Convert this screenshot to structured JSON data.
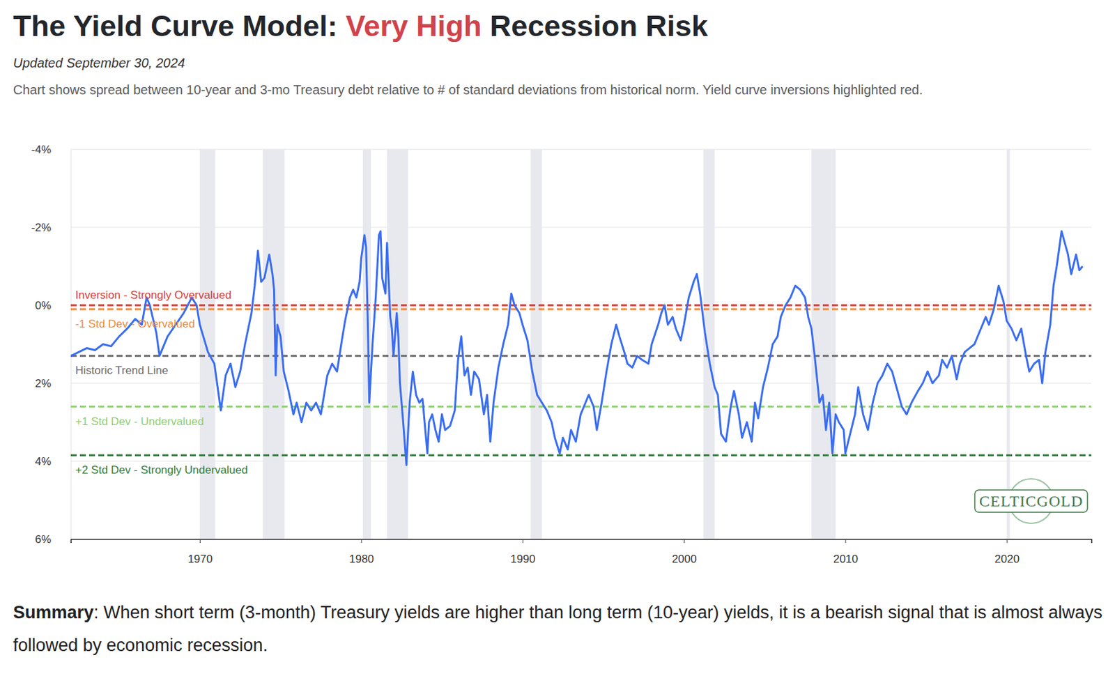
{
  "chart_data": {
    "type": "line",
    "title": {
      "prefix": "The Yield Curve Model:",
      "highlight": "Very High",
      "suffix": "Recession Risk"
    },
    "subtitle": "Updated September 30, 2024",
    "description": "Chart shows spread between 10-year and 3-mo Treasury debt relative to # of standard deviations from historical norm. Yield curve inversions highlighted red.",
    "x": [
      1962.0,
      1962.5,
      1963.0,
      1963.5,
      1964.0,
      1964.5,
      1965.0,
      1965.5,
      1966.0,
      1966.4,
      1966.7,
      1966.9,
      1967.3,
      1967.5,
      1968.0,
      1968.5,
      1969.0,
      1969.5,
      1969.8,
      1970.0,
      1970.5,
      1970.9,
      1971.1,
      1971.3,
      1971.6,
      1971.9,
      1972.2,
      1972.5,
      1972.8,
      1973.2,
      1973.4,
      1973.6,
      1973.8,
      1974.0,
      1974.3,
      1974.5,
      1974.6,
      1974.7,
      1974.8,
      1975.0,
      1975.2,
      1975.5,
      1975.8,
      1976.0,
      1976.3,
      1976.6,
      1976.9,
      1977.2,
      1977.5,
      1977.7,
      1977.9,
      1978.2,
      1978.5,
      1978.8,
      1979.0,
      1979.3,
      1979.5,
      1979.7,
      1979.9,
      1980.0,
      1980.2,
      1980.3,
      1980.4,
      1980.5,
      1980.7,
      1980.9,
      1981.1,
      1981.2,
      1981.3,
      1981.5,
      1981.6,
      1981.8,
      1981.9,
      1982.0,
      1982.2,
      1982.3,
      1982.4,
      1982.6,
      1982.8,
      1983.0,
      1983.2,
      1983.4,
      1983.6,
      1983.8,
      1984.1,
      1984.2,
      1984.4,
      1984.6,
      1984.8,
      1985.0,
      1985.2,
      1985.5,
      1985.8,
      1986.0,
      1986.2,
      1986.4,
      1986.6,
      1986.8,
      1987.0,
      1987.3,
      1987.6,
      1987.8,
      1988.0,
      1988.2,
      1988.5,
      1988.8,
      1989.1,
      1989.3,
      1989.5,
      1989.8,
      1990.0,
      1990.3,
      1990.6,
      1990.9,
      1991.2,
      1991.5,
      1991.8,
      1992.0,
      1992.3,
      1992.5,
      1992.8,
      1993.0,
      1993.3,
      1993.6,
      1993.9,
      1994.1,
      1994.4,
      1994.6,
      1994.9,
      1995.2,
      1995.5,
      1995.8,
      1996.0,
      1996.3,
      1996.5,
      1996.8,
      1997.1,
      1997.4,
      1997.8,
      1998.0,
      1998.4,
      1998.6,
      1998.8,
      1999.0,
      1999.3,
      1999.5,
      1999.8,
      2000.0,
      2000.3,
      2000.6,
      2000.8,
      2001.0,
      2001.3,
      2001.6,
      2001.9,
      2002.1,
      2002.3,
      2002.6,
      2002.9,
      2003.1,
      2003.4,
      2003.6,
      2003.9,
      2004.2,
      2004.4,
      2004.6,
      2004.9,
      2005.2,
      2005.5,
      2005.8,
      2006.0,
      2006.3,
      2006.6,
      2006.9,
      2007.2,
      2007.5,
      2007.7,
      2007.9,
      2008.1,
      2008.3,
      2008.4,
      2008.6,
      2008.8,
      2009.0,
      2009.2,
      2009.4,
      2009.6,
      2009.9,
      2010.0,
      2010.3,
      2010.6,
      2010.8,
      2011.1,
      2011.4,
      2011.7,
      2012.0,
      2012.3,
      2012.6,
      2012.9,
      2013.1,
      2013.5,
      2013.8,
      2014.1,
      2014.5,
      2014.8,
      2015.1,
      2015.4,
      2015.8,
      2016.0,
      2016.3,
      2016.6,
      2016.9,
      2017.1,
      2017.4,
      2017.7,
      2018.0,
      2018.4,
      2018.7,
      2018.9,
      2019.2,
      2019.5,
      2019.8,
      2020.0,
      2020.3,
      2020.6,
      2020.9,
      2021.2,
      2021.4,
      2021.7,
      2022.0,
      2022.2,
      2022.4,
      2022.7,
      2022.9,
      2023.1,
      2023.4,
      2023.6,
      2023.8,
      2024.0,
      2024.3,
      2024.5,
      2024.7
    ],
    "series": [
      {
        "color": "#3a6df0",
        "values": [
          1.3,
          1.2,
          1.1,
          1.15,
          1.0,
          1.05,
          0.8,
          0.6,
          0.35,
          0.5,
          -0.2,
          0.0,
          0.7,
          1.3,
          0.8,
          0.5,
          0.2,
          -0.2,
          0.0,
          0.5,
          1.2,
          1.5,
          2.1,
          2.7,
          1.8,
          1.5,
          2.1,
          1.7,
          1.0,
          0.2,
          -0.5,
          -1.4,
          -0.6,
          -0.7,
          -1.3,
          -0.8,
          -0.4,
          1.8,
          0.5,
          0.8,
          1.7,
          2.2,
          2.8,
          2.5,
          3.0,
          2.5,
          2.7,
          2.5,
          2.8,
          2.3,
          1.8,
          1.5,
          1.7,
          0.9,
          0.4,
          -0.2,
          -0.4,
          -0.2,
          -0.6,
          -1.2,
          -1.8,
          -1.5,
          0.3,
          2.5,
          1.0,
          -0.2,
          -1.8,
          -1.9,
          -0.7,
          -0.3,
          -1.6,
          0.3,
          0.6,
          1.3,
          0.2,
          0.8,
          2.0,
          3.0,
          4.1,
          2.5,
          1.7,
          2.3,
          2.5,
          2.4,
          3.8,
          3.0,
          2.8,
          3.2,
          3.5,
          2.8,
          3.2,
          3.1,
          2.7,
          1.4,
          0.8,
          1.8,
          1.6,
          2.3,
          1.7,
          1.9,
          2.8,
          2.3,
          3.5,
          2.5,
          1.6,
          1.0,
          0.5,
          -0.3,
          0.0,
          0.2,
          0.5,
          0.9,
          1.7,
          2.3,
          2.5,
          2.7,
          3.0,
          3.4,
          3.8,
          3.4,
          3.7,
          3.2,
          3.5,
          2.8,
          2.5,
          2.3,
          2.6,
          3.2,
          2.5,
          1.7,
          1.0,
          0.5,
          0.8,
          1.2,
          1.5,
          1.6,
          1.3,
          1.4,
          1.5,
          1.0,
          0.5,
          0.2,
          0.0,
          0.5,
          0.3,
          0.6,
          0.9,
          0.5,
          -0.2,
          -0.6,
          -0.8,
          -0.3,
          0.7,
          1.5,
          2.1,
          2.3,
          3.3,
          3.5,
          2.6,
          2.2,
          2.8,
          3.4,
          3.0,
          3.5,
          2.5,
          2.9,
          2.1,
          1.6,
          1.0,
          0.8,
          0.3,
          0.0,
          -0.2,
          -0.5,
          -0.4,
          -0.2,
          0.3,
          0.6,
          1.3,
          2.1,
          2.5,
          2.3,
          3.2,
          2.5,
          3.8,
          2.8,
          3.0,
          3.2,
          3.8,
          3.3,
          2.8,
          2.1,
          2.8,
          3.2,
          2.5,
          2.0,
          1.8,
          1.5,
          1.7,
          2.0,
          2.6,
          2.8,
          2.5,
          2.2,
          2.0,
          1.7,
          2.0,
          1.8,
          1.4,
          1.6,
          1.3,
          1.9,
          1.5,
          1.2,
          1.1,
          1.0,
          0.6,
          0.3,
          0.5,
          0.1,
          -0.5,
          -0.1,
          0.4,
          0.6,
          0.9,
          0.6,
          1.3,
          1.7,
          1.5,
          1.4,
          2.0,
          1.2,
          0.5,
          -0.5,
          -1.0,
          -1.9,
          -1.6,
          -1.3,
          -0.8,
          -1.3,
          -0.9,
          -1.0
        ]
      }
    ],
    "xlim": [
      1962,
      2025.25
    ],
    "xticks": [
      1970,
      1980,
      1990,
      2000,
      2010,
      2020
    ],
    "ylim": [
      -4,
      6
    ],
    "yticks": [
      {
        "value": -4,
        "label": "-4%"
      },
      {
        "value": -2,
        "label": "-2%"
      },
      {
        "value": 0,
        "label": "0%"
      },
      {
        "value": 2,
        "label": "2%"
      },
      {
        "value": 4,
        "label": "4%"
      },
      {
        "value": 6,
        "label": "6%"
      }
    ],
    "grid": true,
    "reference_lines": [
      {
        "value": 0,
        "label": "Inversion - Strongly Overvalued",
        "color": "#d4403b",
        "line_style": "dashed"
      },
      {
        "value": 0.1,
        "label": "-1 Std Dev - Overvalued",
        "color": "#ee8a3c",
        "line_style": "dashed"
      },
      {
        "value": 1.3,
        "label": "Historic Trend Line",
        "color": "#6a6a6a",
        "line_style": "dashed"
      },
      {
        "value": 2.6,
        "label": "+1 Std Dev - Undervalued",
        "color": "#8fcf72",
        "line_style": "dashed"
      },
      {
        "value": 3.85,
        "label": "+2 Std Dev - Strongly Undervalued",
        "color": "#2f7d3b",
        "line_style": "dashed"
      }
    ],
    "recessions": [
      {
        "start": 1970.0,
        "end": 1970.95
      },
      {
        "start": 1973.9,
        "end": 1975.25
      },
      {
        "start": 1980.1,
        "end": 1980.6
      },
      {
        "start": 1981.6,
        "end": 1982.9
      },
      {
        "start": 1990.5,
        "end": 1991.2
      },
      {
        "start": 2001.2,
        "end": 2001.9
      },
      {
        "start": 2007.9,
        "end": 2009.4
      },
      {
        "start": 2020.0,
        "end": 2020.2
      }
    ],
    "watermark": "CELTICGOLD",
    "summary": {
      "label": "Summary",
      "text": ": When short term (3-month) Treasury yields are higher than long term (10-year) yields, it is a bearish signal that is almost always followed by economic recession."
    }
  }
}
